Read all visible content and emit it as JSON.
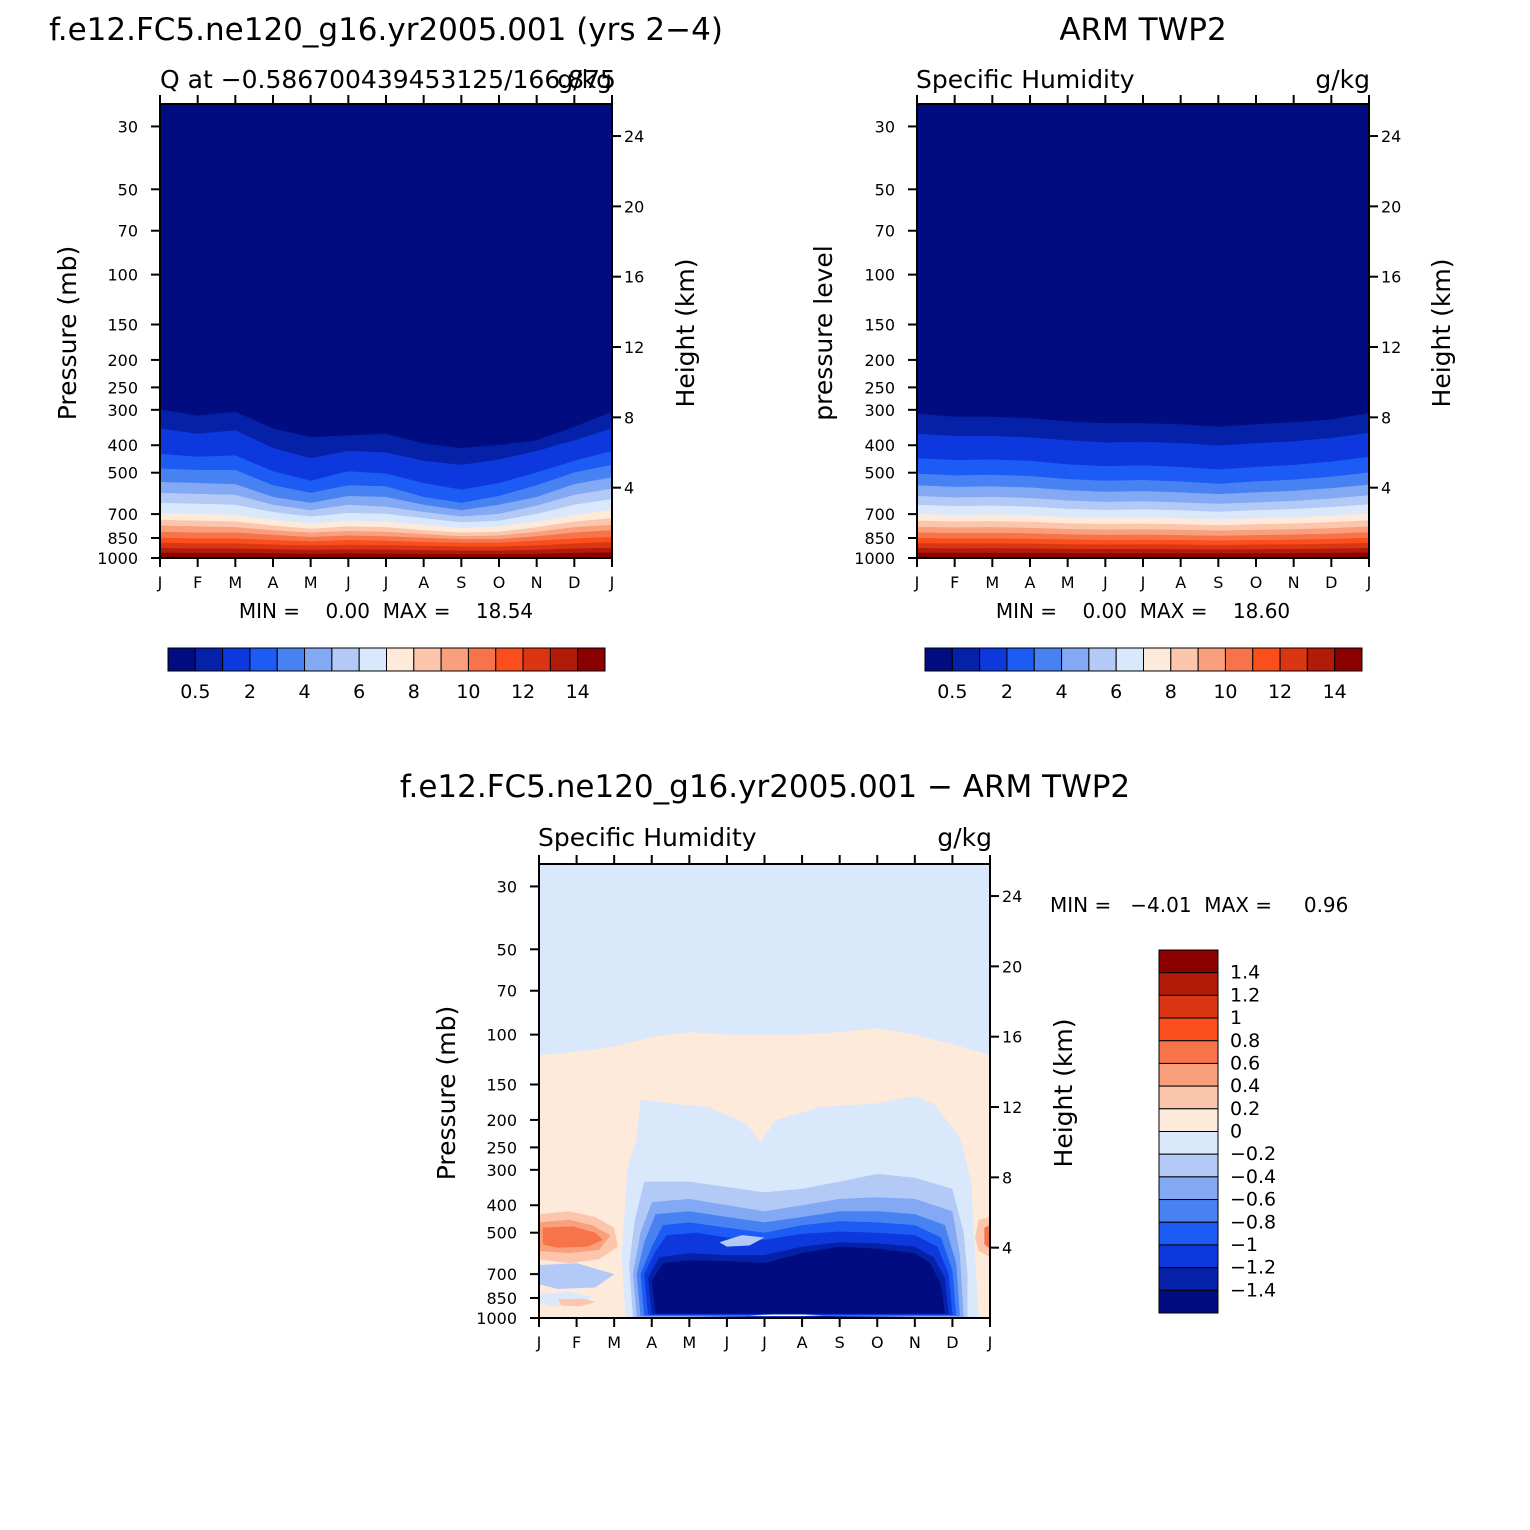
{
  "panels": [
    {
      "id": "model",
      "title": "f.e12.FC5.ne120_g16.yr2005.001 (yrs 2−4)",
      "subtitle_left": "Q at −0.586700439453125/166.875",
      "subtitle_right": "g/kg",
      "ylabel_left": "Pressure (mb)",
      "ylabel_right": "Height (km)",
      "stats": "MIN =    0.00  MAX =    18.54"
    },
    {
      "id": "obs",
      "title": "ARM TWP2",
      "subtitle_left": "Specific Humidity",
      "subtitle_right": "g/kg",
      "ylabel_left": "pressure level",
      "ylabel_right": "Height (km)",
      "stats": "MIN =    0.00  MAX =    18.60"
    },
    {
      "id": "diff",
      "title": "f.e12.FC5.ne120_g16.yr2005.001 − ARM TWP2",
      "subtitle_left": "Specific Humidity",
      "subtitle_right": "g/kg",
      "ylabel_left": "Pressure (mb)",
      "ylabel_right": "Height (km)",
      "stats": "MIN =   −4.01  MAX =     0.96"
    }
  ],
  "chart_data": [
    {
      "type": "heatmap",
      "panel": "model",
      "x_months": [
        "J",
        "F",
        "M",
        "A",
        "M",
        "J",
        "J",
        "A",
        "S",
        "O",
        "N",
        "D",
        "J"
      ],
      "y_pressure_ticks_mb": [
        30,
        50,
        70,
        100,
        150,
        200,
        250,
        300,
        400,
        500,
        700,
        850,
        1000
      ],
      "y_height_ticks_km": [
        4,
        8,
        12,
        16,
        20,
        24
      ],
      "ylim_mb": [
        1000,
        25
      ],
      "y_scale": "log",
      "units": "g/kg",
      "min": 0.0,
      "max": 18.54,
      "colorbar_labels": [
        "0.5",
        "2",
        "4",
        "6",
        "8",
        "10",
        "12",
        "14"
      ],
      "levels": [
        0.5,
        1,
        2,
        3,
        4,
        5,
        6,
        7,
        8,
        9,
        10,
        11,
        12,
        13,
        14
      ],
      "colors": [
        "#000c80",
        "#0521a8",
        "#0d38dd",
        "#1d5cf4",
        "#4882f2",
        "#83a8f4",
        "#b3caf7",
        "#d9e8fb",
        "#fdeadb",
        "#fcc6ad",
        "#f99f7c",
        "#f7744b",
        "#fb4e1d",
        "#db3613",
        "#b11b08",
        "#8b0000"
      ],
      "contour_pressures_mb": {
        "0.5": [
          300,
          315,
          305,
          350,
          375,
          370,
          365,
          395,
          410,
          400,
          385,
          345,
          305
        ],
        "1": [
          350,
          365,
          355,
          410,
          445,
          420,
          425,
          455,
          470,
          450,
          420,
          385,
          350
        ],
        "2": [
          430,
          440,
          435,
          495,
          535,
          495,
          505,
          545,
          575,
          545,
          500,
          455,
          420
        ],
        "3": [
          485,
          490,
          490,
          555,
          590,
          555,
          560,
          610,
          640,
          605,
          555,
          500,
          470
        ],
        "4": [
          540,
          545,
          550,
          610,
          640,
          605,
          610,
          650,
          680,
          650,
          610,
          550,
          520
        ],
        "5": [
          590,
          595,
          600,
          650,
          680,
          650,
          660,
          690,
          715,
          700,
          655,
          600,
          570
        ],
        "6": [
          640,
          645,
          650,
          690,
          715,
          695,
          700,
          725,
          750,
          740,
          700,
          650,
          620
        ],
        "7": [
          695,
          700,
          705,
          735,
          755,
          740,
          745,
          765,
          785,
          775,
          745,
          705,
          675
        ],
        "8": [
          735,
          740,
          745,
          770,
          790,
          775,
          780,
          800,
          815,
          810,
          780,
          745,
          725
        ],
        "9": [
          770,
          775,
          780,
          800,
          815,
          805,
          810,
          825,
          840,
          835,
          810,
          780,
          765
        ],
        "10": [
          810,
          815,
          815,
          830,
          845,
          835,
          840,
          850,
          860,
          860,
          840,
          815,
          800
        ],
        "11": [
          850,
          855,
          855,
          865,
          875,
          865,
          870,
          880,
          885,
          885,
          870,
          855,
          845
        ],
        "12": [
          885,
          890,
          890,
          898,
          905,
          900,
          902,
          908,
          912,
          912,
          905,
          890,
          880
        ],
        "13": [
          925,
          928,
          928,
          933,
          938,
          935,
          936,
          940,
          943,
          943,
          938,
          928,
          922
        ],
        "14": [
          960,
          962,
          962,
          965,
          968,
          966,
          967,
          969,
          971,
          971,
          968,
          962,
          958
        ]
      }
    },
    {
      "type": "heatmap",
      "panel": "obs",
      "x_months": [
        "J",
        "F",
        "M",
        "A",
        "M",
        "J",
        "J",
        "A",
        "S",
        "O",
        "N",
        "D",
        "J"
      ],
      "y_pressure_ticks_mb": [
        30,
        50,
        70,
        100,
        150,
        200,
        250,
        300,
        400,
        500,
        700,
        850,
        1000
      ],
      "y_height_ticks_km": [
        4,
        8,
        12,
        16,
        20,
        24
      ],
      "ylim_mb": [
        1000,
        25
      ],
      "y_scale": "log",
      "units": "g/kg",
      "min": 0.0,
      "max": 18.6,
      "colorbar_labels": [
        "0.5",
        "2",
        "4",
        "6",
        "8",
        "10",
        "12",
        "14"
      ],
      "levels": [
        0.5,
        1,
        2,
        3,
        4,
        5,
        6,
        7,
        8,
        9,
        10,
        11,
        12,
        13,
        14
      ],
      "colors": [
        "#000c80",
        "#0521a8",
        "#0d38dd",
        "#1d5cf4",
        "#4882f2",
        "#83a8f4",
        "#b3caf7",
        "#d9e8fb",
        "#fdeadb",
        "#fcc6ad",
        "#f99f7c",
        "#f7744b",
        "#fb4e1d",
        "#db3613",
        "#b11b08",
        "#8b0000"
      ],
      "contour_pressures_mb": {
        "0.5": [
          310,
          318,
          318,
          322,
          330,
          335,
          335,
          338,
          345,
          338,
          332,
          325,
          308
        ],
        "1": [
          365,
          372,
          372,
          376,
          385,
          392,
          390,
          394,
          402,
          394,
          388,
          378,
          362
        ],
        "2": [
          445,
          452,
          450,
          455,
          468,
          475,
          472,
          478,
          488,
          478,
          470,
          458,
          440
        ],
        "3": [
          505,
          512,
          510,
          515,
          528,
          535,
          532,
          538,
          548,
          538,
          530,
          518,
          500
        ],
        "4": [
          555,
          562,
          560,
          565,
          578,
          585,
          582,
          588,
          596,
          588,
          580,
          568,
          552
        ],
        "5": [
          605,
          612,
          610,
          615,
          628,
          635,
          632,
          638,
          645,
          638,
          630,
          618,
          602
        ],
        "6": [
          650,
          657,
          655,
          660,
          672,
          678,
          675,
          680,
          688,
          680,
          673,
          662,
          648
        ],
        "7": [
          700,
          706,
          704,
          708,
          718,
          723,
          721,
          725,
          732,
          725,
          719,
          710,
          698
        ],
        "8": [
          740,
          745,
          743,
          747,
          756,
          760,
          758,
          762,
          768,
          762,
          757,
          749,
          738
        ],
        "9": [
          778,
          782,
          780,
          784,
          792,
          796,
          794,
          797,
          802,
          797,
          793,
          786,
          776
        ],
        "10": [
          815,
          818,
          817,
          820,
          827,
          830,
          829,
          832,
          836,
          832,
          828,
          822,
          813
        ],
        "11": [
          852,
          855,
          854,
          857,
          862,
          865,
          864,
          866,
          869,
          866,
          863,
          858,
          850
        ],
        "12": [
          888,
          890,
          890,
          892,
          896,
          898,
          897,
          899,
          901,
          899,
          897,
          893,
          887
        ],
        "13": [
          925,
          927,
          926,
          928,
          931,
          932,
          932,
          933,
          935,
          933,
          932,
          929,
          924
        ],
        "14": [
          960,
          961,
          961,
          962,
          964,
          965,
          964,
          965,
          966,
          965,
          964,
          962,
          959
        ]
      }
    },
    {
      "type": "heatmap",
      "panel": "diff",
      "x_months": [
        "J",
        "F",
        "M",
        "A",
        "M",
        "J",
        "J",
        "A",
        "S",
        "O",
        "N",
        "D",
        "J"
      ],
      "y_pressure_ticks_mb": [
        30,
        50,
        70,
        100,
        150,
        200,
        250,
        300,
        400,
        500,
        700,
        850,
        1000
      ],
      "y_height_ticks_km": [
        4,
        8,
        12,
        16,
        20,
        24
      ],
      "ylim_mb": [
        1000,
        25
      ],
      "y_scale": "log",
      "units": "g/kg",
      "min": -4.01,
      "max": 0.96,
      "colorbar_labels": [
        "1.4",
        "1.2",
        "1",
        "0.8",
        "0.6",
        "0.4",
        "0.2",
        "0",
        "−0.2",
        "−0.4",
        "−0.6",
        "−0.8",
        "−1",
        "−1.2",
        "−1.4"
      ],
      "levels": [
        -1.4,
        -1.2,
        -1,
        -0.8,
        -0.6,
        -0.4,
        -0.2,
        0,
        0.2,
        0.4,
        0.6,
        0.8,
        1,
        1.2,
        1.4
      ],
      "colors": [
        "#000c80",
        "#0521a8",
        "#0d38dd",
        "#1d5cf4",
        "#4882f2",
        "#83a8f4",
        "#b3caf7",
        "#d9e8fb",
        "#fdeadb",
        "#fcc6ad",
        "#f99f7c",
        "#f7744b",
        "#fb4e1d",
        "#db3613",
        "#b11b08",
        "#8b0000"
      ],
      "background_level": 0,
      "zero_line_mb": [
        118,
        115,
        110,
        102,
        98,
        100,
        100,
        100,
        98,
        95,
        100,
        108,
        118
      ]
    }
  ]
}
